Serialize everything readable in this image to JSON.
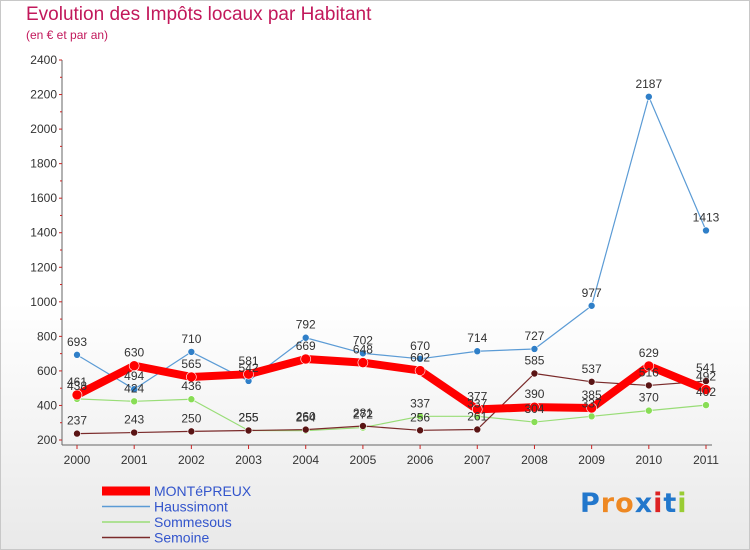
{
  "chart_data": {
    "type": "line",
    "title": "Evolution des Impôts locaux par Habitant",
    "subtitle": "(en € et par an)",
    "xlabel": "",
    "ylabel": "",
    "ylim": [
      200,
      2400
    ],
    "yticks": [
      200,
      400,
      600,
      800,
      1000,
      1200,
      1400,
      1600,
      1800,
      2000,
      2200,
      2400
    ],
    "categories": [
      "2000",
      "2001",
      "2002",
      "2003",
      "2004",
      "2005",
      "2006",
      "2007",
      "2008",
      "2009",
      "2010",
      "2011"
    ],
    "grid": false,
    "legend_position": "bottom-left",
    "series": [
      {
        "name": "Haussimont",
        "color": "#5b9bd5",
        "values": [
          693,
          494,
          710,
          542,
          792,
          702,
          670,
          714,
          727,
          977,
          2187,
          1413
        ],
        "labels": [
          "693",
          "494",
          "710",
          "542",
          "792",
          "702",
          "670",
          "714",
          "727",
          "977",
          "2187",
          "1413"
        ]
      },
      {
        "name": "Sommesous",
        "color": "#99dd77",
        "values": [
          438,
          424,
          436,
          255,
          254,
          272,
          337,
          337,
          304,
          337,
          370,
          402
        ],
        "labels": [
          "438",
          "424",
          "436",
          "255",
          "254",
          "272",
          "337",
          "337",
          "304",
          "337",
          "370",
          "402"
        ]
      },
      {
        "name": "Semoine",
        "color": "#7a2a2a",
        "values": [
          237,
          243,
          250,
          255,
          260,
          281,
          256,
          261,
          585,
          537,
          516,
          541
        ],
        "labels": [
          "237",
          "243",
          "250",
          "255",
          "260",
          "281",
          "256",
          "261",
          "585",
          "537",
          "516",
          "541"
        ]
      },
      {
        "name": "MONTéPREUX",
        "color": "#ff0000",
        "values": [
          461,
          630,
          565,
          581,
          669,
          648,
          602,
          377,
          390,
          385,
          629,
          492
        ],
        "labels": [
          "461",
          "630",
          "565",
          "581",
          "669",
          "648",
          "602",
          "377",
          "390",
          "385",
          "629",
          "492"
        ]
      }
    ],
    "legend_order": [
      "MONTéPREUX",
      "Haussimont",
      "Sommesous",
      "Semoine"
    ]
  },
  "logo": {
    "text": "Proxiti",
    "letter_colors": [
      "#2277cc",
      "#ee8822",
      "#ee8822",
      "#2277cc",
      "#dd2222",
      "#2277cc",
      "#99cc33"
    ]
  }
}
